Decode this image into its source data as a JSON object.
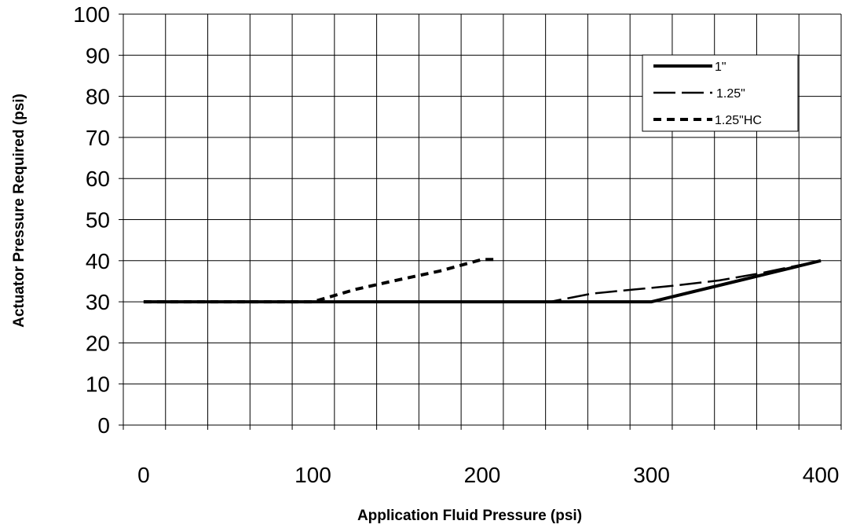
{
  "chart_data": {
    "type": "line",
    "title": "",
    "xlabel": "Application Fluid Pressure (psi)",
    "ylabel": "Actuator Pressure Required (psi)",
    "x_ticks": [
      "0",
      "100",
      "200",
      "300",
      "400"
    ],
    "y_ticks": [
      "0",
      "10",
      "20",
      "30",
      "40",
      "50",
      "60",
      "70",
      "80",
      "90",
      "100"
    ],
    "xlim": [
      -12,
      412
    ],
    "ylim": [
      0,
      100
    ],
    "grid": true,
    "legend_position": "top-right",
    "series": [
      {
        "name": "1\"",
        "color": "#000000",
        "style": "solid",
        "points": [
          [
            0,
            30
          ],
          [
            50,
            30
          ],
          [
            100,
            30
          ],
          [
            150,
            30
          ],
          [
            200,
            30
          ],
          [
            250,
            30
          ],
          [
            300,
            30
          ],
          [
            325,
            32.5
          ],
          [
            350,
            35
          ],
          [
            375,
            37.5
          ],
          [
            400,
            40
          ]
        ]
      },
      {
        "name": "1.25\"",
        "color": "#000000",
        "style": "long-dash",
        "points": [
          [
            0,
            30
          ],
          [
            50,
            30
          ],
          [
            100,
            30
          ],
          [
            150,
            30
          ],
          [
            200,
            30
          ],
          [
            240,
            30
          ],
          [
            265,
            32
          ],
          [
            290,
            33
          ],
          [
            315,
            34
          ],
          [
            340,
            35.2
          ],
          [
            365,
            37
          ],
          [
            400,
            40
          ]
        ]
      },
      {
        "name": "1.25\"HC",
        "color": "#000000",
        "style": "short-dash",
        "points": [
          [
            0,
            30
          ],
          [
            25,
            30
          ],
          [
            50,
            30
          ],
          [
            75,
            30
          ],
          [
            100,
            30
          ],
          [
            125,
            33
          ],
          [
            150,
            35.3
          ],
          [
            175,
            37.5
          ],
          [
            200,
            40.3
          ],
          [
            207,
            40.3
          ]
        ]
      }
    ]
  }
}
